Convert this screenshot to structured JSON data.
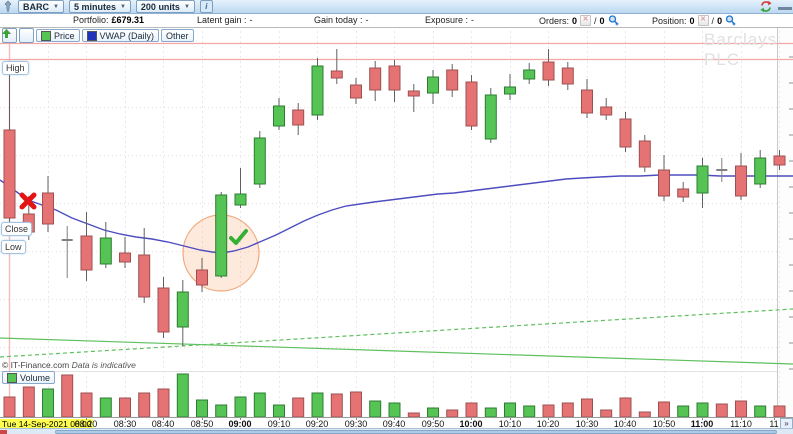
{
  "toolbar": {
    "symbol": "BARC",
    "timeframe": "5 minutes",
    "units": "200 units",
    "info_label": "i"
  },
  "status": {
    "portfolio": {
      "label": "Portfolio:",
      "value": "£679.31"
    },
    "latent": {
      "label": "Latent gain :",
      "value": "-"
    },
    "gain": {
      "label": "Gain today :",
      "value": "-"
    },
    "exposure": {
      "label": "Exposure :",
      "value": "-"
    },
    "orders": {
      "label": "Orders:",
      "open": "0",
      "slash": "/",
      "total": "0"
    },
    "position": {
      "label": "Position:",
      "open": "0",
      "slash": "/",
      "total": "0"
    }
  },
  "tabs": {
    "price": "Price",
    "vwap": "VWAP (Daily)",
    "other": "Other"
  },
  "labels": {
    "high": "High",
    "close": "Close",
    "low": "Low"
  },
  "watermark": "Barclays PLC",
  "footnote": {
    "copyright": "© IT-Finance.com",
    "note": "Data is indicative"
  },
  "volume_tab": "Volume",
  "pager": "»",
  "date_label": "Tue 14-Sep-2021 08:00",
  "chart_data": {
    "type": "candlestick",
    "symbol": "BARC",
    "company": "Barclays PLC",
    "interval": "5 minutes",
    "session_date": "Tue 14-Sep-2021",
    "y_units": "screen pixels (price axis labels are not visible in the screenshot)",
    "candle_format": [
      "time",
      "x_px",
      "high_y",
      "body_top_y",
      "body_bottom_y",
      "low_y",
      "direction u/d/n"
    ],
    "candles": [
      [
        "08:00",
        9.5,
        62,
        130,
        218,
        224,
        "d"
      ],
      [
        "08:05",
        28.8,
        196,
        214,
        232,
        240,
        "d"
      ],
      [
        "08:10",
        48,
        176,
        193,
        224,
        232,
        "d"
      ],
      [
        "08:15",
        67.2,
        226,
        239,
        241,
        278,
        "n"
      ],
      [
        "08:20",
        86.5,
        212,
        236,
        270,
        281,
        "d"
      ],
      [
        "08:25",
        105.8,
        222,
        238,
        264,
        268,
        "u"
      ],
      [
        "08:30",
        125,
        237,
        253,
        262,
        268,
        "d"
      ],
      [
        "08:35",
        144.2,
        228,
        255,
        297,
        303,
        "d"
      ],
      [
        "08:40",
        163.5,
        277,
        288,
        332,
        338,
        "d"
      ],
      [
        "08:45",
        182.8,
        280,
        292,
        327,
        346,
        "u"
      ],
      [
        "08:50",
        202,
        258,
        270,
        285,
        292,
        "d"
      ],
      [
        "08:55",
        221.2,
        192,
        195,
        276,
        278,
        "u"
      ],
      [
        "09:00",
        240.5,
        168,
        194,
        205,
        208,
        "u"
      ],
      [
        "09:05",
        259.8,
        131,
        138,
        184,
        188,
        "u"
      ],
      [
        "09:10",
        279,
        98,
        106,
        126,
        130,
        "u"
      ],
      [
        "09:15",
        298.2,
        103,
        110,
        125,
        135,
        "d"
      ],
      [
        "09:20",
        317.5,
        58,
        66,
        115,
        120,
        "u"
      ],
      [
        "09:25",
        336.8,
        49,
        71,
        78,
        84,
        "d"
      ],
      [
        "09:30",
        356,
        78,
        85,
        98,
        104,
        "d"
      ],
      [
        "09:35",
        375.2,
        61,
        68,
        90,
        101,
        "d"
      ],
      [
        "09:40",
        394.5,
        60,
        66,
        90,
        102,
        "d"
      ],
      [
        "09:45",
        413.8,
        84,
        91,
        96,
        112,
        "d"
      ],
      [
        "09:50",
        433,
        70,
        77,
        93,
        104,
        "u"
      ],
      [
        "09:55",
        452.2,
        64,
        70,
        90,
        97,
        "d"
      ],
      [
        "10:00",
        471.5,
        75,
        82,
        126,
        130,
        "d"
      ],
      [
        "10:05",
        490.8,
        88,
        95,
        139,
        143,
        "u"
      ],
      [
        "10:10",
        510,
        74,
        87,
        94,
        100,
        "u"
      ],
      [
        "10:15",
        529.2,
        63,
        70,
        79,
        84,
        "u"
      ],
      [
        "10:20",
        548.5,
        49,
        62,
        80,
        86,
        "d"
      ],
      [
        "10:25",
        567.8,
        62,
        68,
        84,
        90,
        "d"
      ],
      [
        "10:30",
        587,
        79,
        90,
        113,
        118,
        "d"
      ],
      [
        "10:35",
        606.2,
        98,
        107,
        115,
        120,
        "d"
      ],
      [
        "10:40",
        625.5,
        112,
        119,
        147,
        152,
        "d"
      ],
      [
        "10:45",
        644.8,
        135,
        141,
        167,
        172,
        "d"
      ],
      [
        "10:50",
        664,
        155,
        170,
        196,
        201,
        "d"
      ],
      [
        "10:55",
        683.2,
        182,
        189,
        197,
        202,
        "d"
      ],
      [
        "11:00",
        702.5,
        158,
        166,
        193,
        208,
        "u"
      ],
      [
        "11:05",
        721.8,
        158,
        169,
        171,
        182,
        "n"
      ],
      [
        "11:10",
        741,
        153,
        166,
        196,
        200,
        "d"
      ],
      [
        "11:15",
        760.2,
        150,
        158,
        184,
        188,
        "u"
      ],
      [
        "11:20",
        779.5,
        150,
        156,
        165,
        170,
        "d"
      ]
    ],
    "volume": {
      "baseline_y": 417,
      "bar_format": [
        "height_px",
        "direction"
      ],
      "bars": [
        [
          20,
          "d"
        ],
        [
          30,
          "d"
        ],
        [
          28,
          "u"
        ],
        [
          42,
          "d"
        ],
        [
          24,
          "d"
        ],
        [
          19,
          "u"
        ],
        [
          19,
          "d"
        ],
        [
          24,
          "d"
        ],
        [
          28,
          "d"
        ],
        [
          43,
          "u"
        ],
        [
          17,
          "u"
        ],
        [
          12,
          "u"
        ],
        [
          20,
          "u"
        ],
        [
          24,
          "u"
        ],
        [
          12,
          "u"
        ],
        [
          19,
          "d"
        ],
        [
          24,
          "u"
        ],
        [
          23,
          "d"
        ],
        [
          25,
          "d"
        ],
        [
          16,
          "u"
        ],
        [
          14,
          "u"
        ],
        [
          4,
          "d"
        ],
        [
          9,
          "u"
        ],
        [
          7,
          "d"
        ],
        [
          14,
          "d"
        ],
        [
          9,
          "u"
        ],
        [
          14,
          "u"
        ],
        [
          11,
          "u"
        ],
        [
          12,
          "d"
        ],
        [
          14,
          "d"
        ],
        [
          18,
          "d"
        ],
        [
          7,
          "d"
        ],
        [
          19,
          "d"
        ],
        [
          5,
          "d"
        ],
        [
          15,
          "d"
        ],
        [
          11,
          "u"
        ],
        [
          14,
          "u"
        ],
        [
          13,
          "d"
        ],
        [
          16,
          "d"
        ],
        [
          11,
          "u"
        ],
        [
          11,
          "d"
        ]
      ]
    },
    "vwap": [
      [
        0,
        180
      ],
      [
        14,
        190
      ],
      [
        28,
        200
      ],
      [
        42,
        205
      ],
      [
        56,
        210
      ],
      [
        72,
        218
      ],
      [
        88,
        224
      ],
      [
        104,
        230
      ],
      [
        120,
        234
      ],
      [
        136,
        237
      ],
      [
        152,
        239
      ],
      [
        168,
        242
      ],
      [
        184,
        246
      ],
      [
        200,
        250
      ],
      [
        212,
        252
      ],
      [
        222,
        253
      ],
      [
        234,
        251
      ],
      [
        248,
        247
      ],
      [
        262,
        241
      ],
      [
        276,
        235
      ],
      [
        290,
        228
      ],
      [
        304,
        221
      ],
      [
        318,
        215
      ],
      [
        332,
        210
      ],
      [
        346,
        206
      ],
      [
        360,
        204
      ],
      [
        374,
        202
      ],
      [
        390,
        200
      ],
      [
        406,
        198
      ],
      [
        422,
        196
      ],
      [
        438,
        194
      ],
      [
        454,
        193
      ],
      [
        470,
        191
      ],
      [
        486,
        189
      ],
      [
        502,
        187
      ],
      [
        518,
        185
      ],
      [
        534,
        183
      ],
      [
        550,
        181
      ],
      [
        566,
        179
      ],
      [
        582,
        178
      ],
      [
        600,
        177
      ],
      [
        620,
        176
      ],
      [
        640,
        176
      ],
      [
        660,
        175
      ],
      [
        680,
        175
      ],
      [
        700,
        175
      ],
      [
        720,
        176
      ],
      [
        745,
        176
      ],
      [
        770,
        176
      ],
      [
        793,
        176
      ]
    ],
    "trendlines": [
      {
        "style": "solid",
        "points": [
          [
            0,
            338
          ],
          [
            793,
            364
          ]
        ]
      },
      {
        "style": "dashed",
        "points": [
          [
            0,
            357
          ],
          [
            793,
            309
          ]
        ]
      }
    ],
    "high_lines_y": [
      43,
      59
    ],
    "session_line_x": 9,
    "highlight": {
      "cx": 221,
      "cy": 253,
      "r": 38
    },
    "markers": [
      {
        "kind": "sell-cross",
        "x": 28,
        "y": 201
      },
      {
        "kind": "buy-check",
        "x": 238,
        "y": 237
      }
    ],
    "x_ticks": [
      [
        "08:20",
        86,
        0
      ],
      [
        "08:30",
        125,
        0
      ],
      [
        "08:40",
        163,
        0
      ],
      [
        "08:50",
        202,
        0
      ],
      [
        "09:00",
        240,
        1
      ],
      [
        "09:10",
        279,
        0
      ],
      [
        "09:20",
        317,
        0
      ],
      [
        "09:30",
        356,
        0
      ],
      [
        "09:40",
        394,
        0
      ],
      [
        "09:50",
        433,
        0
      ],
      [
        "10:00",
        471,
        1
      ],
      [
        "10:10",
        510,
        0
      ],
      [
        "10:20",
        548,
        0
      ],
      [
        "10:30",
        587,
        0
      ],
      [
        "10:40",
        625,
        0
      ],
      [
        "10:50",
        664,
        0
      ],
      [
        "11:00",
        702,
        1
      ],
      [
        "11:10",
        741,
        0
      ],
      [
        "11",
        774,
        0
      ]
    ],
    "grid": {
      "v": [
        48,
        86,
        125,
        163,
        202,
        240,
        279,
        317,
        356,
        394,
        433,
        471,
        510,
        548,
        587,
        625,
        664,
        702,
        741,
        779
      ],
      "h": [
        107,
        155,
        203,
        251,
        299,
        347
      ]
    },
    "colors": {
      "up": "#55c455",
      "up_border": "#2e7d32",
      "down": "#e57373",
      "down_border": "#9e5050",
      "neutral": "#808080",
      "wick": "#606060",
      "vwap": "#4d4dc0",
      "trend": "#5fc05f",
      "high_line": "#f2a6a6",
      "session_line": "#f6baba",
      "grid_v": "#e4e9f1",
      "grid_h": "#f2dcdc",
      "highlight_fill": "rgba(250,170,120,0.25)",
      "highlight_stroke": "#f0a878",
      "marker_sell": "#e31414",
      "marker_buy": "#35b035"
    }
  }
}
